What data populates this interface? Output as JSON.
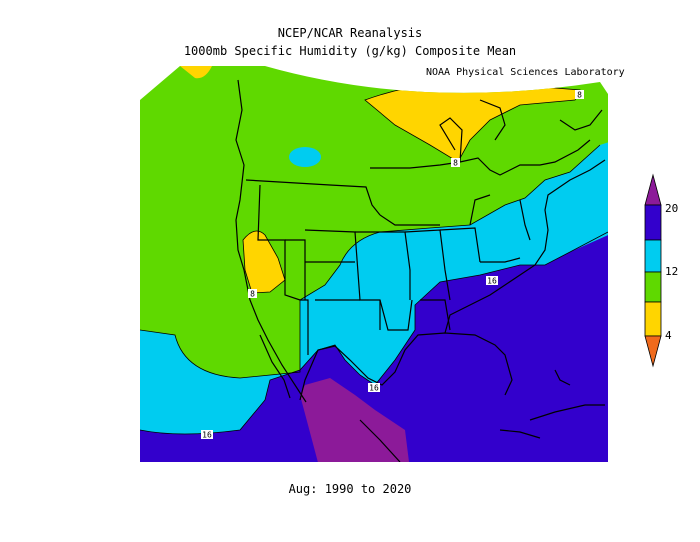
{
  "header": {
    "title_line1": "NCEP/NCAR Reanalysis",
    "title_line2": "1000mb Specific Humidity (g/kg) Composite Mean",
    "credit": "NOAA Physical Sciences Laboratory"
  },
  "footer": {
    "period": "Aug: 1990 to 2020"
  },
  "map": {
    "variable": "1000mb Specific Humidity",
    "units": "g/kg",
    "contour_labels": [
      "8",
      "8",
      "8",
      "16",
      "16",
      "16"
    ],
    "fill_colors": {
      "below_4": "#f06a1c",
      "4_8": "#ffd500",
      "8_12": "#5fd900",
      "12_16": "#00ccf0",
      "16_20": "#3300cc",
      "above_20": "#8c1a99"
    },
    "outline_color": "#000000"
  },
  "colorbar": {
    "tick_labels": [
      "20",
      "12",
      "4"
    ],
    "orientation": "vertical"
  }
}
